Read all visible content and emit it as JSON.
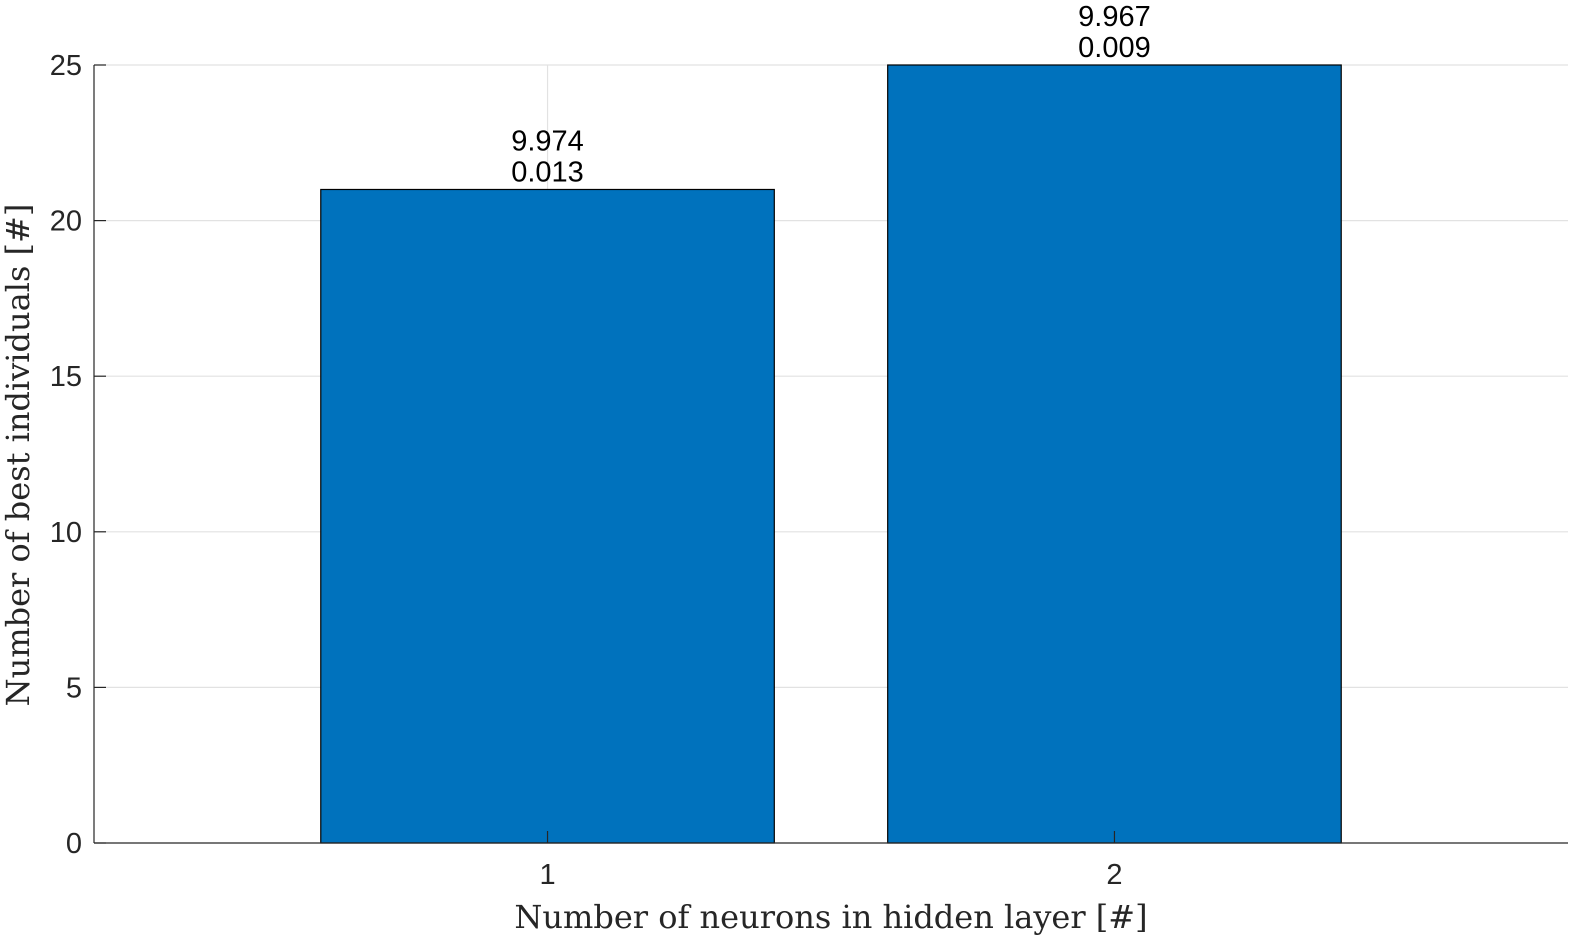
{
  "chart_data": {
    "type": "bar",
    "categories": [
      "1",
      "2"
    ],
    "values": [
      21,
      25
    ],
    "bar_labels": [
      [
        "9.974",
        "0.013"
      ],
      [
        "9.967",
        "0.009"
      ]
    ],
    "xlabel": "Number of neurons in hidden layer [#]",
    "ylabel": "Number of best individuals [#]",
    "xlim": [
      0.2,
      2.8
    ],
    "ylim": [
      0,
      25
    ],
    "yticks": [
      0,
      5,
      10,
      15,
      20,
      25
    ],
    "bar_color": "#0072BD",
    "grid": true,
    "legend": "none"
  }
}
